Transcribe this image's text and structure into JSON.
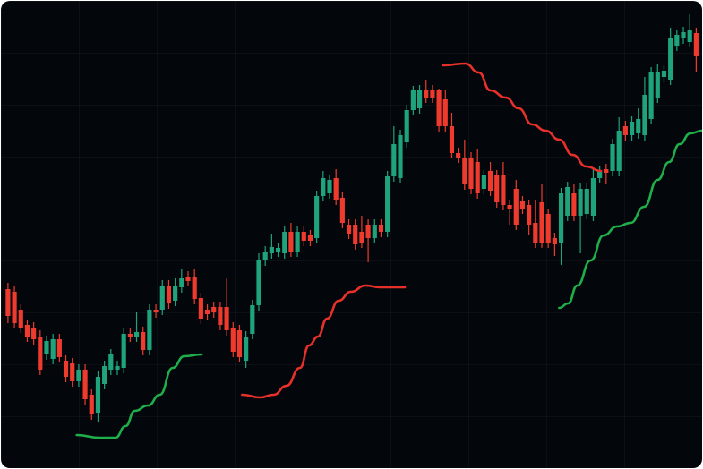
{
  "chart_data": {
    "type": "candlestick",
    "up_color": "#1fa37c",
    "down_color": "#ef3a2e",
    "background": "#03070c",
    "xlim": [
      -1.1,
      108.2
    ],
    "ylim": [
      -24,
      500
    ],
    "x": [
      0,
      1,
      2,
      3,
      4,
      5,
      6,
      7,
      8,
      9,
      10,
      11,
      12,
      13,
      14,
      15,
      16,
      17,
      18,
      19,
      20,
      21,
      22,
      23,
      24,
      25,
      26,
      27,
      28,
      29,
      30,
      31,
      32,
      33,
      34,
      35,
      36,
      37,
      38,
      39,
      40,
      41,
      42,
      43,
      44,
      45,
      46,
      47,
      48,
      49,
      50,
      51,
      52,
      53,
      54,
      55,
      56,
      57,
      58,
      59,
      60,
      61,
      62,
      63,
      64,
      65,
      66,
      67,
      68,
      69,
      70,
      71,
      72,
      73,
      74,
      75,
      76,
      77,
      78,
      79,
      80,
      81,
      82,
      83,
      84,
      85,
      86,
      87,
      88,
      89,
      90,
      91,
      92,
      93,
      94,
      95,
      96,
      97,
      98,
      99,
      100,
      101,
      102,
      103,
      104,
      105,
      106,
      107
    ],
    "open": [
      178,
      175,
      155,
      138,
      135,
      125,
      105,
      100,
      122,
      98,
      95,
      75,
      88,
      60,
      40,
      72,
      88,
      88,
      90,
      128,
      125,
      130,
      110,
      155,
      155,
      182,
      165,
      180,
      192,
      192,
      168,
      155,
      158,
      158,
      158,
      135,
      132,
      98,
      128,
      160,
      210,
      218,
      220,
      218,
      242,
      220,
      242,
      238,
      235,
      282,
      285,
      302,
      280,
      250,
      250,
      242,
      250,
      235,
      250,
      242,
      304,
      302,
      342,
      378,
      380,
      400,
      400,
      400,
      390,
      360,
      330,
      325,
      325,
      320,
      290,
      310,
      305,
      305,
      272,
      290,
      276,
      272,
      252,
      275,
      262,
      235,
      230,
      260,
      285,
      260,
      262,
      260,
      302,
      312,
      310,
      310,
      360,
      350,
      352,
      350,
      368,
      392,
      415,
      412,
      450,
      458,
      454,
      464
    ],
    "high": [
      185,
      182,
      161,
      144,
      141,
      132,
      126,
      128,
      128,
      104,
      101,
      94,
      94,
      66,
      86,
      98,
      111,
      98,
      134,
      134,
      152,
      136,
      161,
      161,
      188,
      188,
      190,
      200,
      198,
      200,
      174,
      161,
      164,
      164,
      190,
      141,
      138,
      131,
      166,
      218,
      226,
      240,
      230,
      248,
      252,
      248,
      248,
      244,
      288,
      310,
      306,
      312,
      286,
      256,
      256,
      260,
      256,
      256,
      256,
      310,
      360,
      356,
      384,
      405,
      406,
      412,
      406,
      402,
      400,
      375,
      336,
      345,
      331,
      335,
      311,
      320,
      311,
      320,
      278,
      300,
      282,
      278,
      278,
      295,
      268,
      241,
      291,
      298,
      295,
      296,
      296,
      312,
      316,
      318,
      346,
      370,
      366,
      371,
      380,
      415,
      426,
      430,
      428,
      470,
      468,
      471,
      485,
      470
    ],
    "low": [
      140,
      135,
      129,
      119,
      116,
      82,
      99,
      94,
      96,
      74,
      69,
      69,
      49,
      32,
      30,
      66,
      82,
      82,
      84,
      119,
      119,
      104,
      104,
      146,
      149,
      156,
      159,
      174,
      181,
      161,
      139,
      144,
      146,
      132,
      126,
      102,
      96,
      90,
      122,
      154,
      204,
      212,
      214,
      212,
      214,
      214,
      226,
      226,
      229,
      276,
      279,
      272,
      246,
      234,
      222,
      224,
      208,
      229,
      236,
      236,
      298,
      296,
      336,
      372,
      374,
      386,
      386,
      354,
      354,
      324,
      319,
      289,
      284,
      279,
      284,
      282,
      269,
      266,
      250,
      244,
      262,
      238,
      224,
      224,
      224,
      215,
      205,
      254,
      254,
      218,
      256,
      254,
      296,
      295,
      304,
      304,
      344,
      344,
      346,
      344,
      362,
      386,
      409,
      406,
      444,
      452,
      448,
      420
    ],
    "close": [
      148,
      140,
      135,
      125,
      122,
      88,
      120,
      122,
      102,
      80,
      75,
      88,
      55,
      38,
      80,
      92,
      105,
      92,
      128,
      125,
      130,
      110,
      155,
      152,
      182,
      162,
      182,
      190,
      187,
      167,
      145,
      150,
      152,
      138,
      132,
      108,
      102,
      125,
      160,
      210,
      220,
      225,
      224,
      242,
      220,
      242,
      232,
      232,
      282,
      302,
      300,
      278,
      252,
      240,
      228,
      230,
      235,
      250,
      242,
      304,
      340,
      350,
      378,
      400,
      400,
      392,
      392,
      360,
      360,
      330,
      325,
      295,
      290,
      285,
      305,
      288,
      275,
      272,
      268,
      250,
      268,
      250,
      230,
      230,
      230,
      228,
      285,
      292,
      260,
      290,
      290,
      302,
      310,
      308,
      340,
      355,
      350,
      365,
      368,
      395,
      420,
      420,
      422,
      458,
      462,
      465,
      467,
      438
    ],
    "lines": [
      {
        "color": "#1fae4a",
        "x": [
          10.7,
          14.2,
          16.7,
          18.3,
          19.7,
          21.8,
          23.6,
          25.6,
          27.4,
          30.1
        ],
        "values": [
          15,
          12,
          12,
          25,
          42,
          48,
          60,
          90,
          103,
          105
        ]
      },
      {
        "color": "#e8302a",
        "x": [
          36.4,
          39.2,
          41.3,
          43.3,
          45.4,
          46.8,
          48.2,
          49.6,
          51.4,
          53.3,
          55.6,
          57.9,
          61.7
        ],
        "values": [
          60,
          57,
          60,
          70,
          90,
          115,
          125,
          145,
          165,
          175,
          182,
          180,
          180
        ]
      },
      {
        "color": "#e8302a",
        "x": [
          67.6,
          71.1,
          73.2,
          75.0,
          77.4,
          79.4,
          81.5,
          83.6,
          85.7,
          87.8,
          89.9,
          92.2
        ],
        "values": [
          428,
          430,
          420,
          400,
          392,
          380,
          362,
          355,
          345,
          328,
          315,
          310
        ]
      },
      {
        "color": "#1fae4a",
        "x": [
          85.7,
          87.1,
          88.5,
          90.6,
          92.6,
          94.7,
          96.8,
          98.9,
          101.0,
          102.8,
          104.4,
          106.1,
          107.9
        ],
        "values": [
          157,
          162,
          182,
          210,
          238,
          248,
          252,
          270,
          300,
          320,
          340,
          352,
          355
        ]
      }
    ]
  }
}
